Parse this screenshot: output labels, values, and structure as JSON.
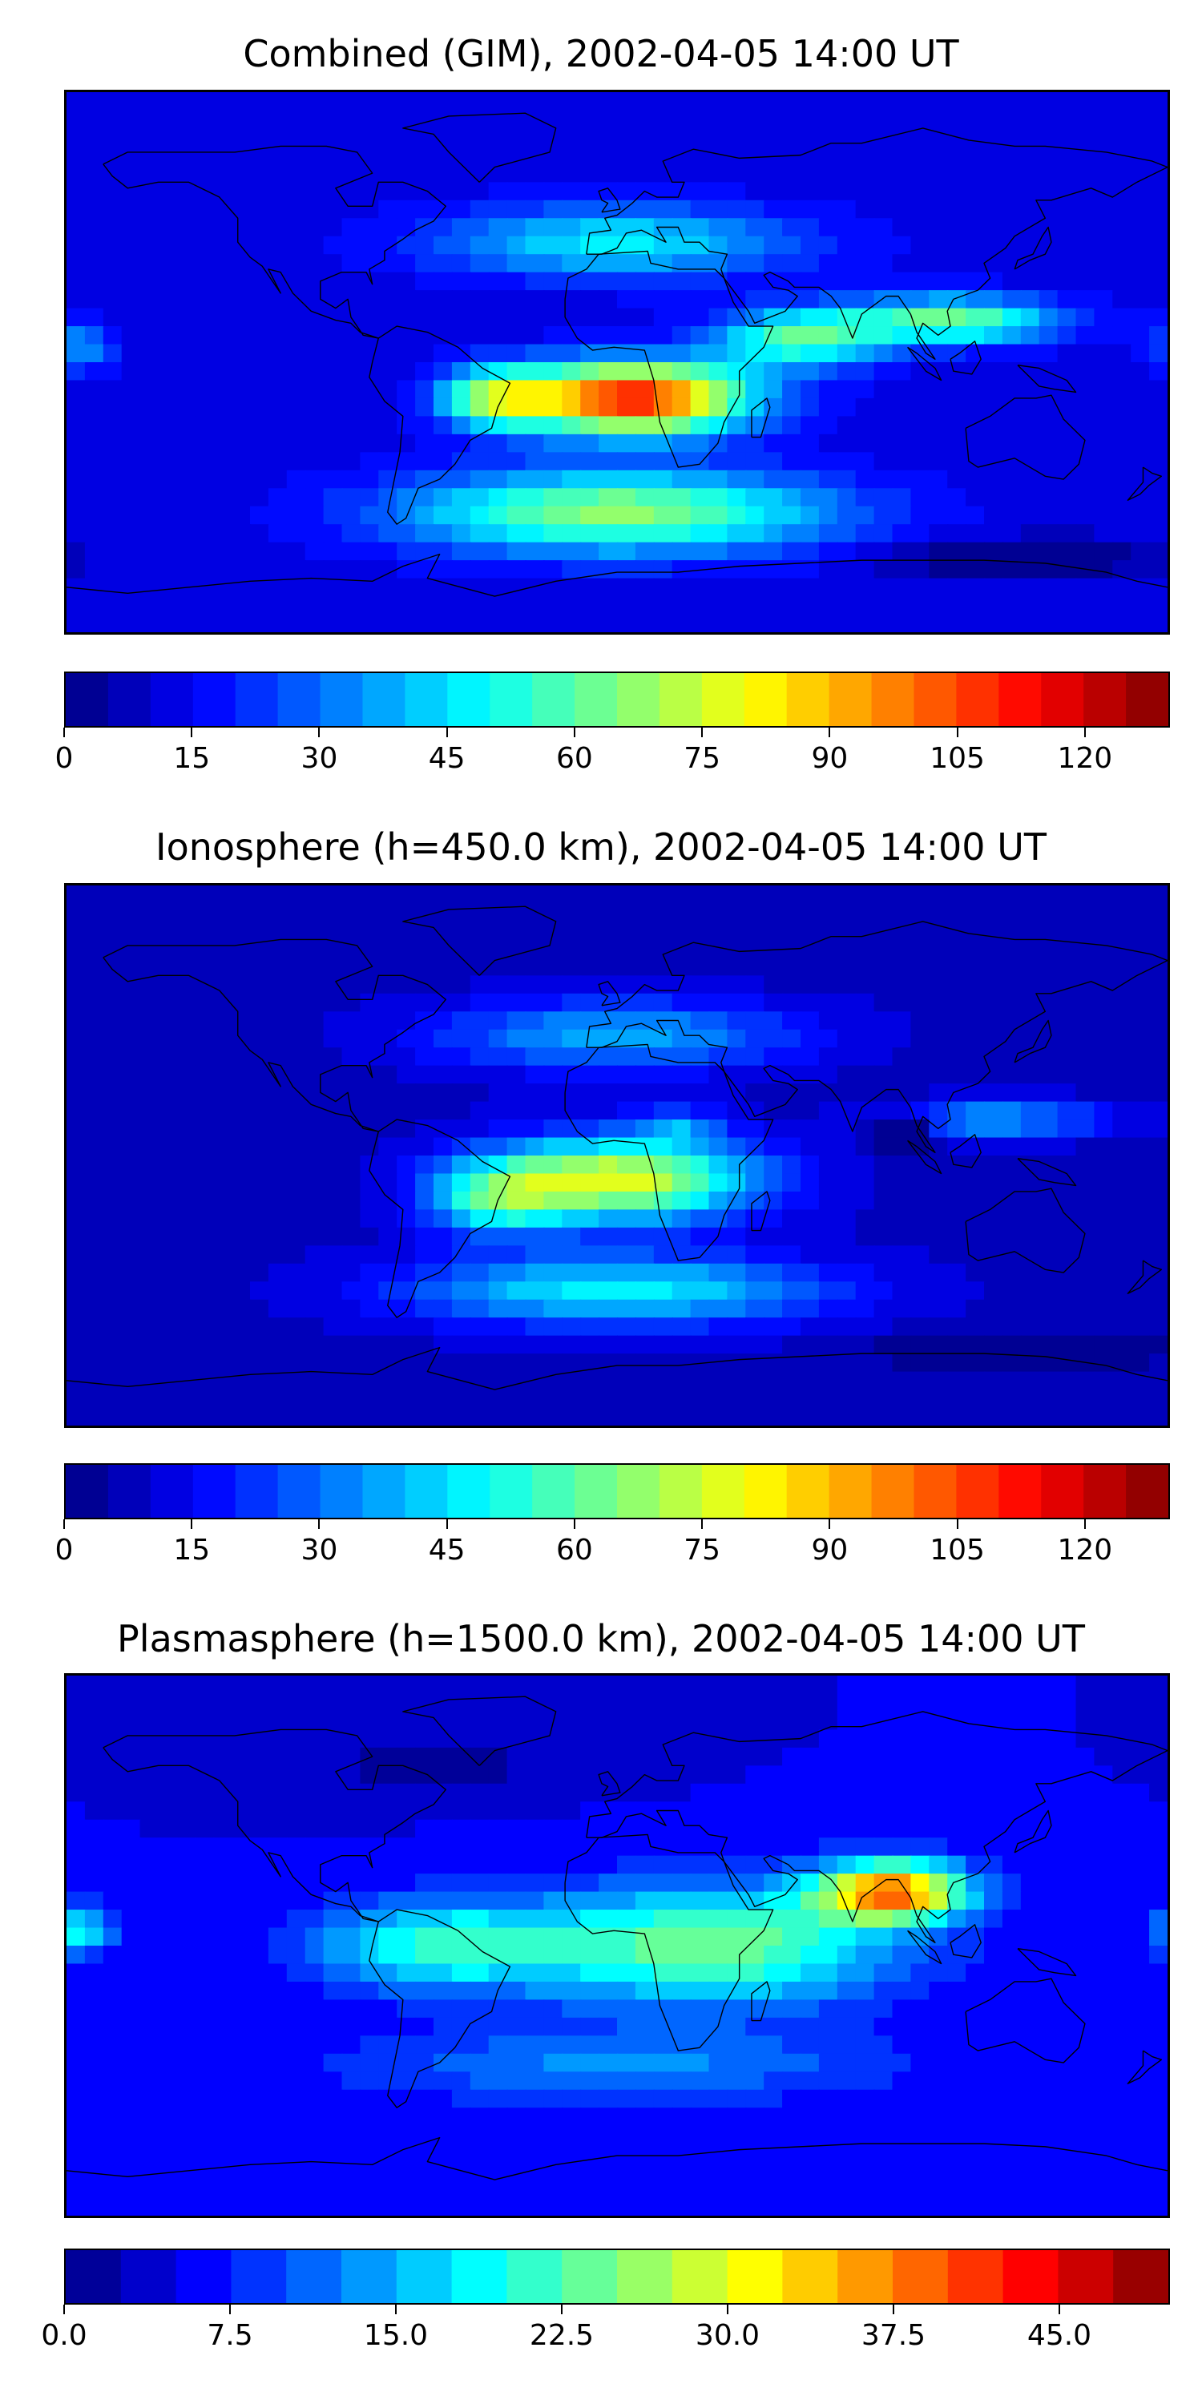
{
  "chart_data": [
    {
      "type": "heatmap",
      "title": "Combined (GIM), 2002-04-05 14:00 UT",
      "colorbar": {
        "min": 0,
        "max": 130,
        "step": 5,
        "ticks": [
          0,
          15,
          30,
          45,
          60,
          75,
          90,
          105,
          120
        ],
        "tick_labels": [
          "0",
          "15",
          "30",
          "45",
          "60",
          "75",
          "90",
          "105",
          "120"
        ]
      },
      "field": {
        "base": 12,
        "blobs": [
          {
            "lon": 5,
            "lat": -12,
            "amp": 100,
            "slon": 38,
            "slat": 12
          },
          {
            "lon": 60,
            "lat": 8,
            "amp": 45,
            "slon": 28,
            "slat": 10
          },
          {
            "lon": -40,
            "lat": -12,
            "amp": 45,
            "slon": 18,
            "slat": 10
          },
          {
            "lon": 110,
            "lat": 14,
            "amp": 50,
            "slon": 35,
            "slat": 8
          },
          {
            "lon": 0,
            "lat": -50,
            "amp": 55,
            "slon": 70,
            "slat": 14
          },
          {
            "lon": 0,
            "lat": 40,
            "amp": 35,
            "slon": 60,
            "slat": 12
          },
          {
            "lon": -175,
            "lat": 5,
            "amp": 25,
            "slon": 10,
            "slat": 8
          },
          {
            "lon": 130,
            "lat": -65,
            "amp": -20,
            "slon": 40,
            "slat": 6
          }
        ]
      }
    },
    {
      "type": "heatmap",
      "title": "Ionosphere  (h=450.0 km), 2002-04-05 14:00 UT",
      "colorbar": {
        "min": 0,
        "max": 130,
        "step": 5,
        "ticks": [
          0,
          15,
          30,
          45,
          60,
          75,
          90,
          105,
          120
        ],
        "tick_labels": [
          "0",
          "15",
          "30",
          "45",
          "60",
          "75",
          "90",
          "105",
          "120"
        ]
      },
      "field": {
        "base": 8,
        "blobs": [
          {
            "lon": 0,
            "lat": -8,
            "amp": 70,
            "slon": 45,
            "slat": 14
          },
          {
            "lon": 20,
            "lat": 10,
            "amp": 20,
            "slon": 15,
            "slat": 6
          },
          {
            "lon": -40,
            "lat": -15,
            "amp": 35,
            "slon": 22,
            "slat": 12
          },
          {
            "lon": 0,
            "lat": -45,
            "amp": 40,
            "slon": 70,
            "slat": 12
          },
          {
            "lon": 0,
            "lat": 40,
            "amp": 30,
            "slon": 60,
            "slat": 12
          },
          {
            "lon": 125,
            "lat": 12,
            "amp": 30,
            "slon": 35,
            "slat": 6
          },
          {
            "lon": 93,
            "lat": 8,
            "amp": -45,
            "slon": 8,
            "slat": 5
          },
          {
            "lon": 130,
            "lat": -65,
            "amp": -15,
            "slon": 40,
            "slat": 6
          }
        ]
      }
    },
    {
      "type": "heatmap",
      "title": "Plasmasphere (h=1500.0 km), 2002-04-05 14:00 UT",
      "colorbar": {
        "min": 0,
        "max": 50,
        "step": 2.5,
        "ticks": [
          0,
          7.5,
          15,
          22.5,
          30,
          37.5,
          45
        ],
        "tick_labels": [
          "0.0",
          "7.5",
          "15.0",
          "22.5",
          "30.0",
          "37.5",
          "45.0"
        ]
      },
      "field": {
        "base": 5,
        "blobs": [
          {
            "lon": 90,
            "lat": 18,
            "amp": 32,
            "slon": 25,
            "slat": 10
          },
          {
            "lon": 30,
            "lat": 0,
            "amp": 20,
            "slon": 60,
            "slat": 20
          },
          {
            "lon": -60,
            "lat": 0,
            "amp": 15,
            "slon": 40,
            "slat": 15
          },
          {
            "lon": -175,
            "lat": 5,
            "amp": 15,
            "slon": 10,
            "slat": 8
          },
          {
            "lon": 0,
            "lat": -40,
            "amp": 8,
            "slon": 90,
            "slat": 12
          },
          {
            "lon": -60,
            "lat": 60,
            "amp": -4,
            "slon": 40,
            "slat": 10
          }
        ]
      }
    }
  ]
}
